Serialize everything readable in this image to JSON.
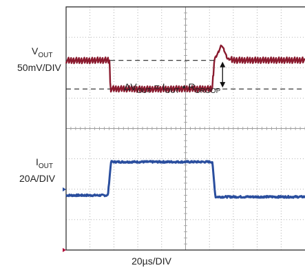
{
  "labels": {
    "vout_main": "V",
    "vout_sub": "OUT",
    "vout_scale": "50mV/DIV",
    "iout_main": "I",
    "iout_sub": "OUT",
    "iout_scale": "20A/DIV",
    "time_scale": "20µs/DIV"
  },
  "equation": {
    "delta": "ΔV",
    "vout_sub": "OUT",
    "equals": " = I",
    "iout_sub": "OUT",
    "bullet": " • R",
    "r_sub": "DROOP"
  },
  "chart_data": {
    "type": "line",
    "title": "",
    "xlabel": "20µs/DIV",
    "grid": true,
    "divisions": {
      "x": 10,
      "y": 8
    },
    "x_unit": "div",
    "xlim": [
      0,
      10
    ],
    "ylim": [
      -4,
      4
    ],
    "colors": {
      "vout": "#8a1a2e",
      "iout": "#2a4e9e",
      "grid": "#9a9a9a",
      "frame": "#222222",
      "marker": "#b0103a"
    },
    "series": [
      {
        "name": "VOUT",
        "scale": "50mV/DIV",
        "points_div": [
          [
            0,
            2.24
          ],
          [
            1.82,
            2.24
          ],
          [
            1.85,
            1.3
          ],
          [
            6.12,
            1.3
          ],
          [
            6.2,
            2.24
          ],
          [
            6.4,
            2.55
          ],
          [
            6.5,
            2.75
          ],
          [
            6.6,
            2.6
          ],
          [
            6.75,
            2.3
          ],
          [
            7.0,
            2.24
          ],
          [
            10,
            2.24
          ]
        ],
        "ripple_div": 0.1
      },
      {
        "name": "IOUT",
        "scale": "20A/DIV",
        "points_div": [
          [
            0,
            -2.2
          ],
          [
            1.75,
            -2.2
          ],
          [
            1.88,
            -1.1
          ],
          [
            6.12,
            -1.1
          ],
          [
            6.25,
            -2.25
          ],
          [
            10,
            -2.25
          ]
        ],
        "noise_div": 0.03
      }
    ],
    "annotations": [
      {
        "type": "dashed_level",
        "y_div": 2.24,
        "x_range": [
          1.85,
          6.2
        ]
      },
      {
        "type": "dashed_level",
        "y_div": 1.3,
        "x_range": [
          0,
          1.85
        ]
      },
      {
        "type": "dashed_level",
        "y_div": 1.3,
        "x_range": [
          6.2,
          10
        ]
      },
      {
        "type": "double_arrow",
        "x_div": 6.55,
        "y_range_div": [
          1.3,
          2.24
        ]
      }
    ]
  }
}
